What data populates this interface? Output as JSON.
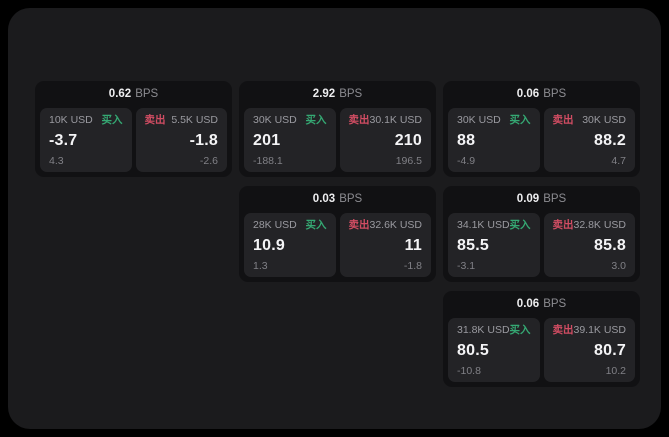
{
  "labels": {
    "bps_suffix": "BPS",
    "buy": "买入",
    "sell": "卖出"
  },
  "colors": {
    "background": "#000000",
    "panel": "#1b1b1d",
    "card": "#111113",
    "pane": "#232326",
    "buy_accent": "#35a873",
    "sell_accent": "#d24d63",
    "value_text": "#f4f4f6",
    "label_text": "#9a9aa0",
    "delta_text": "#808086"
  },
  "cards": [
    {
      "bps": "0.62",
      "buy": {
        "amount": "10K USD",
        "value": "-3.7",
        "delta": "4.3"
      },
      "sell": {
        "amount": "5.5K USD",
        "value": "-1.8",
        "delta": "-2.6"
      }
    },
    {
      "bps": "2.92",
      "buy": {
        "amount": "30K USD",
        "value": "201",
        "delta": "-188.1"
      },
      "sell": {
        "amount": "30.1K USD",
        "value": "210",
        "delta": "196.5"
      }
    },
    {
      "bps": "0.06",
      "buy": {
        "amount": "30K USD",
        "value": "88",
        "delta": "-4.9"
      },
      "sell": {
        "amount": "30K USD",
        "value": "88.2",
        "delta": "4.7"
      }
    },
    {
      "bps": "0.03",
      "buy": {
        "amount": "28K USD",
        "value": "10.9",
        "delta": "1.3"
      },
      "sell": {
        "amount": "32.6K USD",
        "value": "11",
        "delta": "-1.8"
      }
    },
    {
      "bps": "0.09",
      "buy": {
        "amount": "34.1K USD",
        "value": "85.5",
        "delta": "-3.1"
      },
      "sell": {
        "amount": "32.8K USD",
        "value": "85.8",
        "delta": "3.0"
      }
    },
    {
      "bps": "0.06",
      "buy": {
        "amount": "31.8K USD",
        "value": "80.5",
        "delta": "-10.8"
      },
      "sell": {
        "amount": "39.1K USD",
        "value": "80.7",
        "delta": "10.2"
      }
    }
  ]
}
